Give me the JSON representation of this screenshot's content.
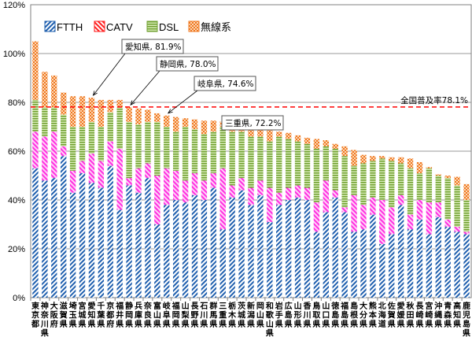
{
  "chart_data": {
    "type": "bar",
    "stacked": true,
    "title": "",
    "xlabel": "",
    "ylabel": "",
    "ylim": [
      0,
      120
    ],
    "yticks": [
      "0%",
      "20%",
      "40%",
      "60%",
      "80%",
      "100%",
      "120%"
    ],
    "ytick_values": [
      0,
      20,
      40,
      60,
      80,
      100,
      120
    ],
    "grid": true,
    "legend_position": "top-left",
    "categories": [
      "東京都",
      "神奈川県",
      "大阪府",
      "滋賀県",
      "埼玉県",
      "宮城県",
      "愛知県",
      "千葉県",
      "京都府",
      "福井県",
      "静岡県",
      "兵庫県",
      "奈良県",
      "富山県",
      "岐阜県",
      "福岡県",
      "山梨県",
      "長野県",
      "石川県",
      "群馬県",
      "三重県",
      "栃木県",
      "茨城県",
      "新潟県",
      "岡山県",
      "和歌山県",
      "岩手県",
      "広島県",
      "山形県",
      "香川県",
      "鳥取県",
      "山口県",
      "徳島県",
      "福島県",
      "島根県",
      "大分県",
      "熊本県",
      "北海道",
      "佐賀県",
      "愛媛県",
      "秋田県",
      "長崎県",
      "宮崎県",
      "沖縄県",
      "青森県",
      "高知県",
      "鹿児島県"
    ],
    "series": [
      {
        "name": "FTTH",
        "color": "#1f5fae",
        "pattern": "diag-blue",
        "values": [
          53,
          48,
          49,
          58,
          43,
          51,
          47,
          45,
          54,
          36,
          46,
          43,
          49,
          30,
          38,
          40,
          39,
          42,
          40,
          45,
          28,
          41,
          44,
          38,
          42,
          31,
          38,
          40,
          41,
          40,
          27,
          35,
          41,
          35,
          27,
          28,
          34,
          22,
          26,
          38,
          28,
          32,
          26,
          33,
          29,
          27,
          26
        ]
      },
      {
        "name": "CATV",
        "color": "#ff2020",
        "pattern": "diag-red",
        "values": [
          15,
          18,
          19,
          4,
          9,
          5,
          12,
          11,
          10,
          25,
          3,
          10,
          6,
          20,
          15,
          12,
          9,
          9,
          8,
          6,
          25,
          5,
          5,
          7,
          6,
          14,
          5,
          5,
          5,
          5,
          12,
          13,
          3,
          2,
          15,
          10,
          7,
          18,
          11,
          4,
          6,
          8,
          13,
          6,
          3,
          2,
          1
        ]
      },
      {
        "name": "DSL",
        "color": "#70a030",
        "pattern": "hlines-green",
        "values": [
          13,
          12,
          10,
          13,
          18,
          14,
          13,
          14,
          12,
          17,
          23,
          18,
          17,
          22,
          17,
          16,
          22,
          18,
          19,
          17,
          17,
          22,
          19,
          21,
          18,
          19,
          23,
          20,
          18,
          18,
          22,
          14,
          17,
          21,
          12,
          17,
          15,
          17,
          19,
          13,
          19,
          11,
          14,
          11,
          17,
          17,
          13
        ]
      },
      {
        "name": "無線系",
        "color": "#f07820",
        "pattern": "checker-orange",
        "values": [
          24,
          14.5,
          13,
          9,
          12.5,
          12.5,
          9.9,
          11,
          5,
          3,
          6,
          6.5,
          5,
          3.5,
          4.6,
          6,
          3.5,
          4,
          5.5,
          4.5,
          2.2,
          3.5,
          3,
          4.5,
          3.5,
          4.5,
          2,
          2.5,
          2.5,
          2.5,
          4,
          2.5,
          2,
          4,
          6.5,
          3.5,
          2,
          1,
          1.5,
          2.5,
          4,
          4.5,
          0.5,
          0.5,
          1,
          3.5,
          6.5
        ]
      }
    ],
    "totals": [
      105,
      92.5,
      91,
      84,
      82.5,
      82.5,
      81.9,
      81,
      81,
      81,
      78.0,
      77.5,
      77,
      75.5,
      74.6,
      74,
      73.5,
      73,
      72.5,
      72.5,
      72.2,
      71.5,
      71,
      70.5,
      69.5,
      68.5,
      68,
      67.5,
      66.5,
      65.5,
      65,
      64.5,
      63,
      62,
      60.5,
      58.5,
      58,
      58,
      57.5,
      57.5,
      57,
      55.5,
      53.5,
      50.5,
      50,
      49.5,
      46.5
    ],
    "reference_line": {
      "label": "全国普及率78.1%",
      "value": 78.1,
      "color": "#ff0000",
      "style": "dashed"
    },
    "annotations": [
      {
        "text": "愛知県, 81.9%",
        "category": "愛知県",
        "value": 81.9
      },
      {
        "text": "静岡県, 78.0%",
        "category": "静岡県",
        "value": 78.0
      },
      {
        "text": "岐阜県, 74.6%",
        "category": "岐阜県",
        "value": 74.6
      },
      {
        "text": "三重県, 72.2%",
        "category": "三重県",
        "value": 72.2
      }
    ]
  }
}
